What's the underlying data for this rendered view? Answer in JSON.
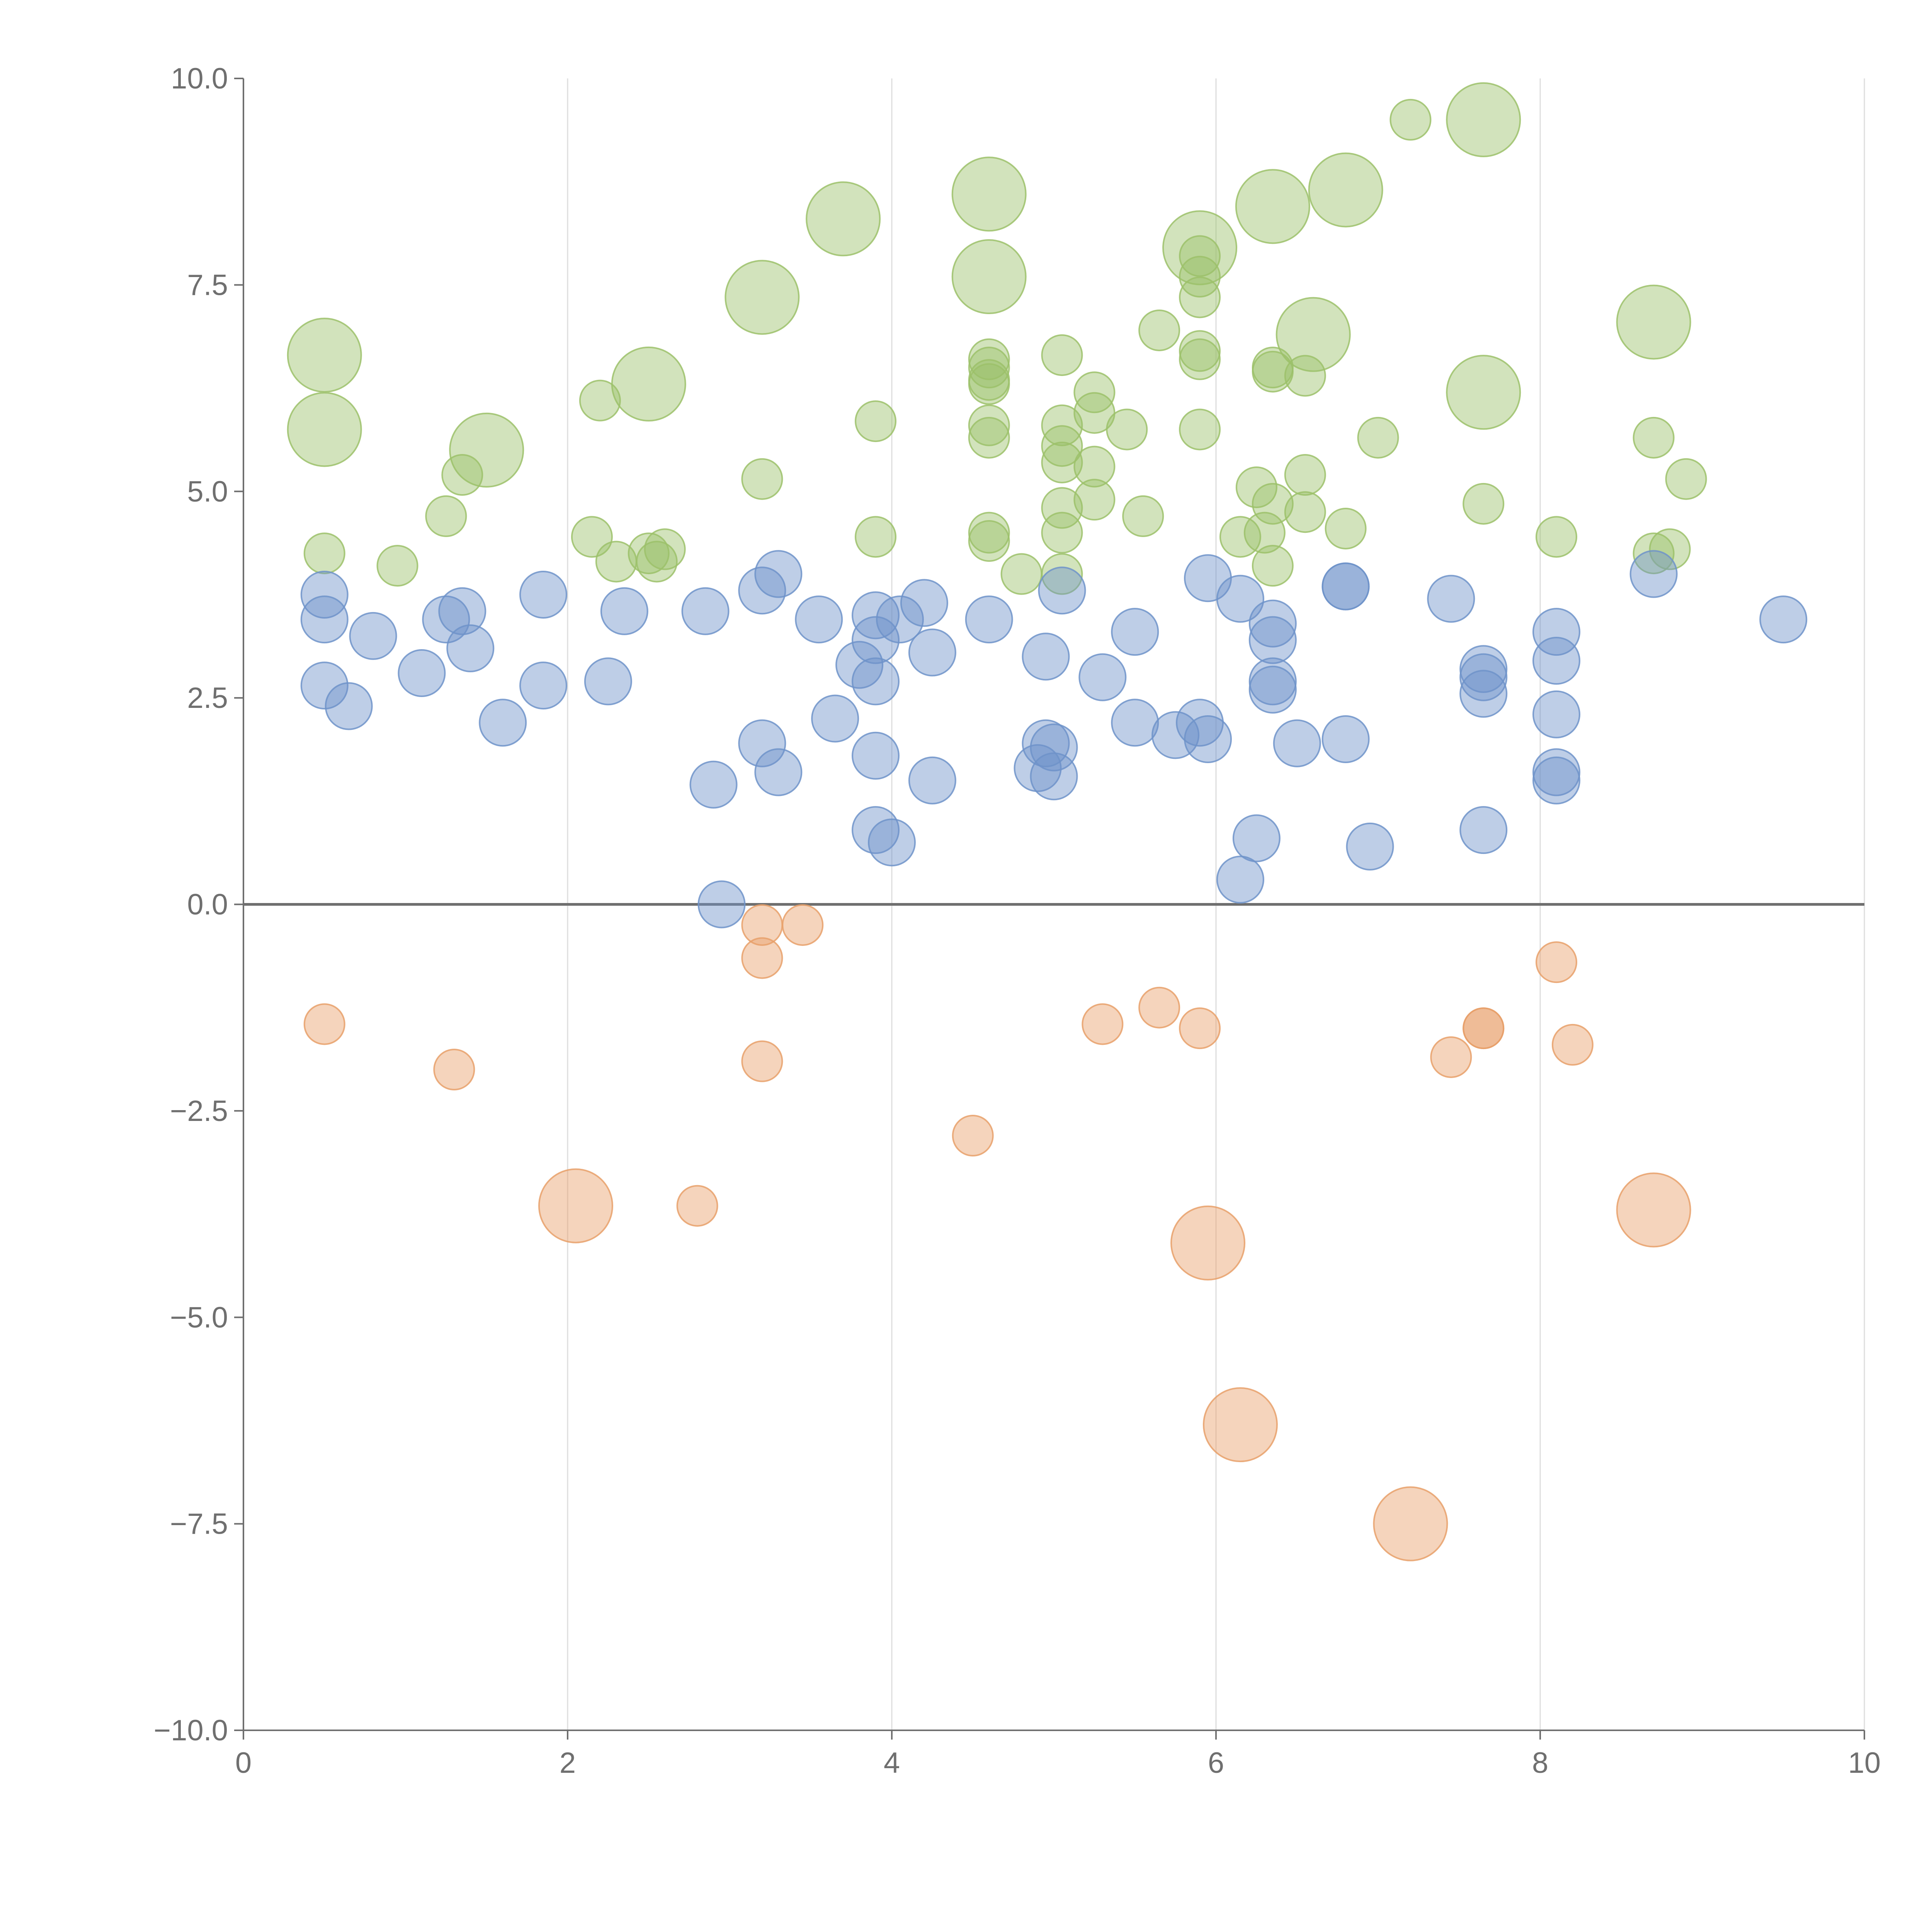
{
  "chart_data": {
    "type": "scatter",
    "title": "",
    "xlabel": "",
    "ylabel": "",
    "xlim": [
      0,
      10
    ],
    "ylim": [
      -10,
      10
    ],
    "x_ticks": [
      "0",
      "2",
      "4",
      "6",
      "8",
      "10"
    ],
    "y_ticks": [
      "10.0",
      "7.5",
      "5.0",
      "2.5",
      "0.0",
      "−2.5",
      "−5.0",
      "−7.5",
      "−10.0"
    ],
    "grid": {
      "x": true,
      "y": false
    },
    "zero_line": true,
    "colors": {
      "green": "#9cc16a",
      "blue": "#6f93c9",
      "orange": "#e8a06a",
      "axis": "#6f6f6f",
      "grid": "#dddddd"
    },
    "series": [
      {
        "color": "green",
        "points": [
          {
            "x": 0.5,
            "y": 6.65,
            "size": "large"
          },
          {
            "x": 0.5,
            "y": 5.75,
            "size": "large"
          },
          {
            "x": 1.5,
            "y": 5.5,
            "size": "large"
          },
          {
            "x": 2.5,
            "y": 6.3,
            "size": "large"
          },
          {
            "x": 3.2,
            "y": 7.35,
            "size": "large"
          },
          {
            "x": 3.7,
            "y": 8.3,
            "size": "large"
          },
          {
            "x": 4.6,
            "y": 8.6,
            "size": "large"
          },
          {
            "x": 4.6,
            "y": 7.6,
            "size": "large"
          },
          {
            "x": 5.9,
            "y": 7.95,
            "size": "large"
          },
          {
            "x": 6.35,
            "y": 8.45,
            "size": "large"
          },
          {
            "x": 6.8,
            "y": 8.65,
            "size": "large"
          },
          {
            "x": 7.65,
            "y": 9.5,
            "size": "large"
          },
          {
            "x": 6.6,
            "y": 6.9,
            "size": "large"
          },
          {
            "x": 7.65,
            "y": 6.2,
            "size": "large"
          },
          {
            "x": 8.7,
            "y": 7.05,
            "size": "large"
          },
          {
            "x": 0.5,
            "y": 4.25,
            "size": "small"
          },
          {
            "x": 0.95,
            "y": 4.1,
            "size": "small"
          },
          {
            "x": 1.25,
            "y": 4.7,
            "size": "small"
          },
          {
            "x": 1.35,
            "y": 5.2,
            "size": "small"
          },
          {
            "x": 2.2,
            "y": 6.1,
            "size": "small"
          },
          {
            "x": 2.15,
            "y": 4.45,
            "size": "small"
          },
          {
            "x": 2.3,
            "y": 4.15,
            "size": "small"
          },
          {
            "x": 2.5,
            "y": 4.25,
            "size": "small"
          },
          {
            "x": 2.55,
            "y": 4.15,
            "size": "small"
          },
          {
            "x": 2.6,
            "y": 4.3,
            "size": "small"
          },
          {
            "x": 3.2,
            "y": 5.15,
            "size": "small"
          },
          {
            "x": 3.9,
            "y": 5.85,
            "size": "small"
          },
          {
            "x": 3.9,
            "y": 4.45,
            "size": "small"
          },
          {
            "x": 4.6,
            "y": 6.6,
            "size": "small"
          },
          {
            "x": 4.6,
            "y": 6.5,
            "size": "small"
          },
          {
            "x": 4.6,
            "y": 6.35,
            "size": "small"
          },
          {
            "x": 4.6,
            "y": 6.3,
            "size": "small"
          },
          {
            "x": 4.6,
            "y": 5.8,
            "size": "small"
          },
          {
            "x": 4.6,
            "y": 5.65,
            "size": "small"
          },
          {
            "x": 4.6,
            "y": 4.5,
            "size": "small"
          },
          {
            "x": 4.6,
            "y": 4.4,
            "size": "small"
          },
          {
            "x": 4.8,
            "y": 4.0,
            "size": "small"
          },
          {
            "x": 5.05,
            "y": 6.65,
            "size": "small"
          },
          {
            "x": 5.05,
            "y": 5.8,
            "size": "small"
          },
          {
            "x": 5.05,
            "y": 5.55,
            "size": "small"
          },
          {
            "x": 5.05,
            "y": 5.35,
            "size": "small"
          },
          {
            "x": 5.05,
            "y": 4.8,
            "size": "small"
          },
          {
            "x": 5.05,
            "y": 4.5,
            "size": "small"
          },
          {
            "x": 5.05,
            "y": 4.0,
            "size": "small"
          },
          {
            "x": 5.25,
            "y": 6.2,
            "size": "small"
          },
          {
            "x": 5.25,
            "y": 5.95,
            "size": "small"
          },
          {
            "x": 5.25,
            "y": 5.3,
            "size": "small"
          },
          {
            "x": 5.25,
            "y": 4.9,
            "size": "small"
          },
          {
            "x": 5.45,
            "y": 5.75,
            "size": "small"
          },
          {
            "x": 5.55,
            "y": 4.7,
            "size": "small"
          },
          {
            "x": 5.65,
            "y": 6.95,
            "size": "small"
          },
          {
            "x": 5.9,
            "y": 7.85,
            "size": "small"
          },
          {
            "x": 5.9,
            "y": 7.6,
            "size": "small"
          },
          {
            "x": 5.9,
            "y": 7.35,
            "size": "small"
          },
          {
            "x": 5.9,
            "y": 6.7,
            "size": "small"
          },
          {
            "x": 5.9,
            "y": 6.6,
            "size": "small"
          },
          {
            "x": 5.9,
            "y": 5.75,
            "size": "small"
          },
          {
            "x": 6.15,
            "y": 4.45,
            "size": "small"
          },
          {
            "x": 6.25,
            "y": 5.05,
            "size": "small"
          },
          {
            "x": 6.35,
            "y": 6.5,
            "size": "small"
          },
          {
            "x": 6.35,
            "y": 6.45,
            "size": "small"
          },
          {
            "x": 6.35,
            "y": 4.85,
            "size": "small"
          },
          {
            "x": 6.3,
            "y": 4.5,
            "size": "small"
          },
          {
            "x": 6.35,
            "y": 4.1,
            "size": "small"
          },
          {
            "x": 6.55,
            "y": 6.4,
            "size": "small"
          },
          {
            "x": 6.55,
            "y": 5.2,
            "size": "small"
          },
          {
            "x": 6.55,
            "y": 4.75,
            "size": "small"
          },
          {
            "x": 6.8,
            "y": 4.55,
            "size": "small"
          },
          {
            "x": 7.0,
            "y": 5.65,
            "size": "small"
          },
          {
            "x": 7.2,
            "y": 9.5,
            "size": "small"
          },
          {
            "x": 7.65,
            "y": 4.85,
            "size": "small"
          },
          {
            "x": 8.1,
            "y": 4.45,
            "size": "small"
          },
          {
            "x": 8.7,
            "y": 5.65,
            "size": "small"
          },
          {
            "x": 8.7,
            "y": 4.25,
            "size": "small"
          },
          {
            "x": 8.8,
            "y": 4.3,
            "size": "small"
          },
          {
            "x": 8.9,
            "y": 5.15,
            "size": "small"
          }
        ]
      },
      {
        "color": "blue",
        "points": [
          {
            "x": 0.5,
            "y": 3.75
          },
          {
            "x": 0.5,
            "y": 3.45
          },
          {
            "x": 0.5,
            "y": 2.65
          },
          {
            "x": 0.65,
            "y": 2.4
          },
          {
            "x": 0.8,
            "y": 3.25
          },
          {
            "x": 1.1,
            "y": 2.8
          },
          {
            "x": 1.25,
            "y": 3.45
          },
          {
            "x": 1.35,
            "y": 3.55
          },
          {
            "x": 1.4,
            "y": 3.1
          },
          {
            "x": 1.6,
            "y": 2.2
          },
          {
            "x": 1.85,
            "y": 2.65
          },
          {
            "x": 1.85,
            "y": 3.75
          },
          {
            "x": 2.25,
            "y": 2.7
          },
          {
            "x": 2.35,
            "y": 3.55
          },
          {
            "x": 2.85,
            "y": 3.55
          },
          {
            "x": 2.9,
            "y": 1.45
          },
          {
            "x": 2.95,
            "y": 0.0
          },
          {
            "x": 3.2,
            "y": 3.8
          },
          {
            "x": 3.2,
            "y": 1.95
          },
          {
            "x": 3.3,
            "y": 4.0
          },
          {
            "x": 3.3,
            "y": 1.6
          },
          {
            "x": 3.55,
            "y": 3.45
          },
          {
            "x": 3.65,
            "y": 2.25
          },
          {
            "x": 3.8,
            "y": 2.9
          },
          {
            "x": 3.9,
            "y": 3.5
          },
          {
            "x": 3.9,
            "y": 3.2
          },
          {
            "x": 3.9,
            "y": 2.7
          },
          {
            "x": 3.9,
            "y": 1.8
          },
          {
            "x": 3.9,
            "y": 0.9
          },
          {
            "x": 4.0,
            "y": 0.75
          },
          {
            "x": 4.05,
            "y": 3.45
          },
          {
            "x": 4.2,
            "y": 3.65
          },
          {
            "x": 4.25,
            "y": 1.5
          },
          {
            "x": 4.25,
            "y": 3.05
          },
          {
            "x": 4.6,
            "y": 3.45
          },
          {
            "x": 4.95,
            "y": 3.0
          },
          {
            "x": 4.9,
            "y": 1.65
          },
          {
            "x": 4.95,
            "y": 1.95
          },
          {
            "x": 5.0,
            "y": 1.9
          },
          {
            "x": 5.0,
            "y": 1.55
          },
          {
            "x": 5.05,
            "y": 3.8
          },
          {
            "x": 5.3,
            "y": 2.75
          },
          {
            "x": 5.5,
            "y": 3.3
          },
          {
            "x": 5.5,
            "y": 2.2
          },
          {
            "x": 5.75,
            "y": 2.05
          },
          {
            "x": 5.9,
            "y": 2.2
          },
          {
            "x": 5.95,
            "y": 2.0
          },
          {
            "x": 5.95,
            "y": 3.95
          },
          {
            "x": 6.15,
            "y": 3.7
          },
          {
            "x": 6.25,
            "y": 0.8
          },
          {
            "x": 6.15,
            "y": 0.3
          },
          {
            "x": 6.35,
            "y": 3.4
          },
          {
            "x": 6.35,
            "y": 3.2
          },
          {
            "x": 6.35,
            "y": 2.7
          },
          {
            "x": 6.35,
            "y": 2.6
          },
          {
            "x": 6.5,
            "y": 1.95
          },
          {
            "x": 6.8,
            "y": 2.0
          },
          {
            "x": 6.8,
            "y": 3.85
          },
          {
            "x": 6.8,
            "y": 3.85
          },
          {
            "x": 6.95,
            "y": 0.7
          },
          {
            "x": 7.45,
            "y": 3.7
          },
          {
            "x": 7.65,
            "y": 2.85
          },
          {
            "x": 7.65,
            "y": 2.75
          },
          {
            "x": 7.65,
            "y": 2.55
          },
          {
            "x": 7.65,
            "y": 0.9
          },
          {
            "x": 8.1,
            "y": 3.3
          },
          {
            "x": 8.1,
            "y": 2.95
          },
          {
            "x": 8.1,
            "y": 2.3
          },
          {
            "x": 8.1,
            "y": 1.6
          },
          {
            "x": 8.1,
            "y": 1.5
          },
          {
            "x": 8.7,
            "y": 4.0
          },
          {
            "x": 9.5,
            "y": 3.45
          }
        ]
      },
      {
        "color": "orange",
        "points": [
          {
            "x": 0.5,
            "y": -1.45,
            "size": "small"
          },
          {
            "x": 1.3,
            "y": -2.0,
            "size": "small"
          },
          {
            "x": 2.8,
            "y": -3.65,
            "size": "small"
          },
          {
            "x": 3.2,
            "y": -0.25,
            "size": "small"
          },
          {
            "x": 3.2,
            "y": -0.65,
            "size": "small"
          },
          {
            "x": 3.2,
            "y": -1.9,
            "size": "small"
          },
          {
            "x": 3.45,
            "y": -0.25,
            "size": "small"
          },
          {
            "x": 4.5,
            "y": -2.8,
            "size": "small"
          },
          {
            "x": 5.3,
            "y": -1.45,
            "size": "small"
          },
          {
            "x": 5.65,
            "y": -1.25,
            "size": "small"
          },
          {
            "x": 5.9,
            "y": -1.5,
            "size": "small"
          },
          {
            "x": 7.45,
            "y": -1.85,
            "size": "small"
          },
          {
            "x": 7.65,
            "y": -1.5,
            "size": "small"
          },
          {
            "x": 7.65,
            "y": -1.5,
            "size": "small"
          },
          {
            "x": 8.1,
            "y": -0.7,
            "size": "small"
          },
          {
            "x": 8.2,
            "y": -1.7,
            "size": "small"
          },
          {
            "x": 2.05,
            "y": -3.65,
            "size": "large"
          },
          {
            "x": 5.95,
            "y": -4.1,
            "size": "large"
          },
          {
            "x": 6.15,
            "y": -6.3,
            "size": "large"
          },
          {
            "x": 7.2,
            "y": -7.5,
            "size": "large"
          },
          {
            "x": 8.7,
            "y": -3.7,
            "size": "large"
          }
        ]
      }
    ]
  }
}
